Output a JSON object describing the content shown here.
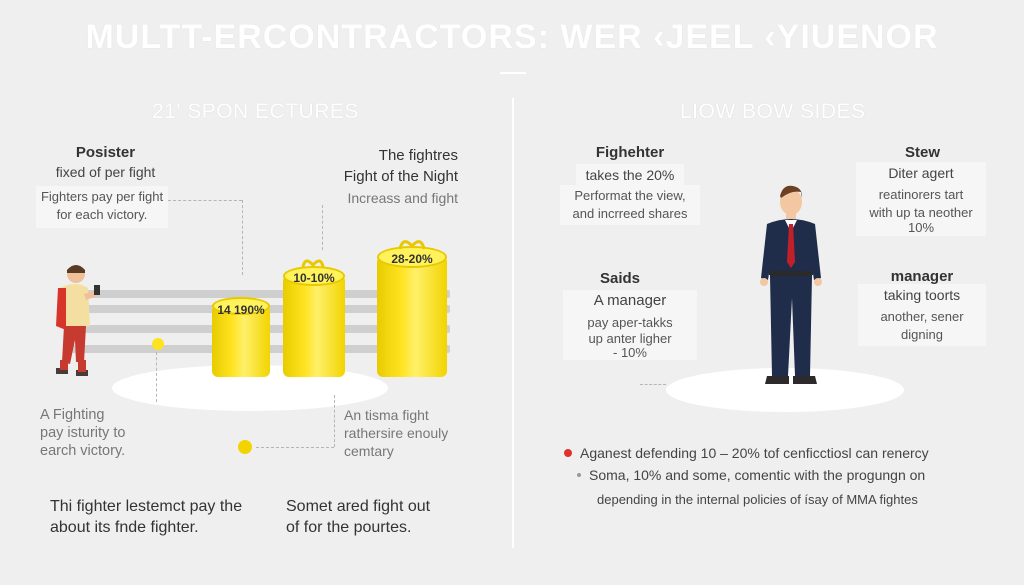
{
  "title": "MULTT-ERCONTRACTORS: WER ‹JEEL ‹YIUENOR",
  "left_section": {
    "heading": "21' SPON ECTURES",
    "posister": {
      "title": "Posister",
      "line1": "fixed of per fight",
      "line2": "Fighters pay per fight",
      "line3": "for each victory."
    },
    "fighters": {
      "title": "The fightres",
      "line1": "Fight of the Night",
      "line2": "Increass and fight"
    },
    "stacks": {
      "small": "14 190%",
      "medium": "10-10%",
      "large": "28-20%"
    },
    "bottom_left": {
      "line1": "A Fighting",
      "line2": "pay isturity to",
      "line3": "earch victory."
    },
    "bottom_right": {
      "line1": "An tisma fight",
      "line2": "rathersire enouly",
      "line3": "cemtary"
    },
    "footer_left": {
      "line1": "Thi fighter lestemct pay the",
      "line2": "about its fnde fighter."
    },
    "footer_right": {
      "line1": "Somet ared fight out",
      "line2": "of for the pourtes."
    }
  },
  "right_section": {
    "heading": "LIOW BOW SIDES",
    "fighter": {
      "title": "Fighehter",
      "line1": "takes the 20%",
      "line2": "Performat the view,",
      "line3": "and incrreed shares"
    },
    "stew": {
      "title": "Stew",
      "line1": "Diter agert",
      "line2": "reatinorers tart",
      "line3": "with up ta neother",
      "line4": "10%"
    },
    "saids": {
      "title": "Saids",
      "line1": "A manager",
      "line2": "pay aper-takks",
      "line3": "up anter ligher",
      "line4": "- 10%"
    },
    "manager": {
      "title": "manager",
      "line1": "taking toorts",
      "line2": "another, sener",
      "line3": "digning"
    },
    "notes": [
      "Aganest defending 10 – 20% tof cenficctiosl can renercy",
      "Soma, 10% and some, comentic with the progungn on",
      "depending in the internal policies of ísay of MMA fightes"
    ]
  },
  "colors": {
    "background": "#efefef",
    "gold": "#ffe321",
    "bullet_red": "#e03030",
    "suit": "#1f2d4a",
    "tie": "#c0202a"
  }
}
